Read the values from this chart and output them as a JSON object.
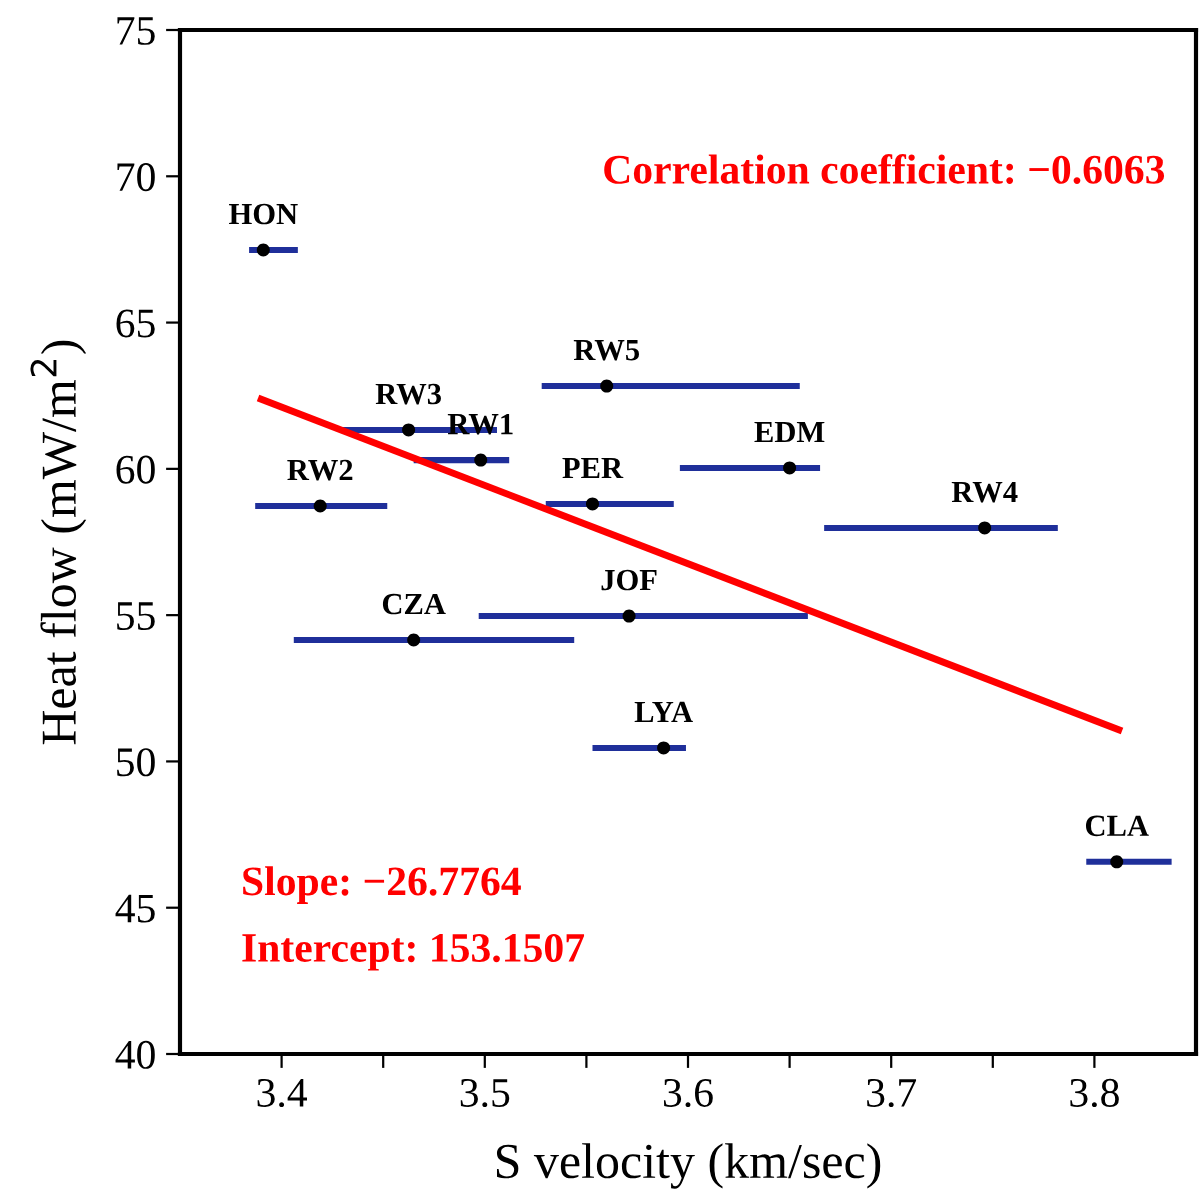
{
  "chart_data": {
    "type": "scatter",
    "xlabel": "S velocity (km/sec)",
    "ylabel": "Heat flow (mW/m$^{2}$)",
    "xlim": [
      3.35,
      3.85
    ],
    "xticks": [
      3.4,
      {
        "value": 3.45,
        "label": null
      },
      3.5,
      {
        "value": 3.55,
        "label": null
      },
      3.6,
      {
        "value": 3.65,
        "label": null
      },
      3.7,
      {
        "value": 3.75,
        "label": null
      },
      3.8
    ],
    "ylim": [
      40,
      75
    ],
    "yticks": [
      40,
      45,
      50,
      55,
      60,
      65,
      70,
      75
    ],
    "grid": false,
    "legend": false,
    "series": [
      {
        "color": "#000000",
        "marker": "circle",
        "x": [
          3.391,
          3.4625,
          3.498,
          3.419,
          3.56,
          3.553,
          3.571,
          3.465,
          3.65,
          3.746,
          3.588,
          3.811
        ],
        "values": [
          67.48,
          61.33,
          60.3,
          58.73,
          62.83,
          58.8,
          54.97,
          54.15,
          60.03,
          57.98,
          50.46,
          46.57
        ],
        "xerrors": [
          [
            3.384,
            3.408
          ],
          [
            3.43,
            3.506
          ],
          [
            3.465,
            3.512
          ],
          [
            3.387,
            3.452
          ],
          [
            3.528,
            3.655
          ],
          [
            3.53,
            3.593
          ],
          [
            3.497,
            3.659
          ],
          [
            3.406,
            3.544
          ],
          [
            3.596,
            3.665
          ],
          [
            3.667,
            3.782
          ],
          [
            3.553,
            3.599
          ],
          [
            3.796,
            3.838
          ]
        ]
      },
      {
        "type": "line",
        "color": "#ff0000",
        "line_style": "solid",
        "marker": "none",
        "x": [
          3.39,
          3.812
        ],
        "values": [
          62.38,
          51.08
        ]
      }
    ],
    "annotations": [
      "Correlation coefficient: −0.6063",
      "Slope: −26.7764",
      "Intercept: 153.1507",
      {
        "text": "HON",
        "x": 3.391,
        "y": 67.48
      },
      {
        "text": "RW3",
        "x": 3.4625,
        "y": 61.33
      },
      {
        "text": "RW1",
        "x": 3.498,
        "y": 60.3
      },
      {
        "text": "RW2",
        "x": 3.419,
        "y": 58.73
      },
      {
        "text": "RW5",
        "x": 3.56,
        "y": 62.83
      },
      {
        "text": "PER",
        "x": 3.553,
        "y": 58.8
      },
      {
        "text": "JOF",
        "x": 3.571,
        "y": 54.97
      },
      {
        "text": "CZA",
        "x": 3.465,
        "y": 54.15
      },
      {
        "text": "EDM",
        "x": 3.65,
        "y": 60.03
      },
      {
        "text": "RW4",
        "x": 3.746,
        "y": 57.98
      },
      {
        "text": "LYA",
        "x": 3.588,
        "y": 50.46
      },
      {
        "text": "CLA",
        "x": 3.811,
        "y": 46.57
      }
    ]
  }
}
